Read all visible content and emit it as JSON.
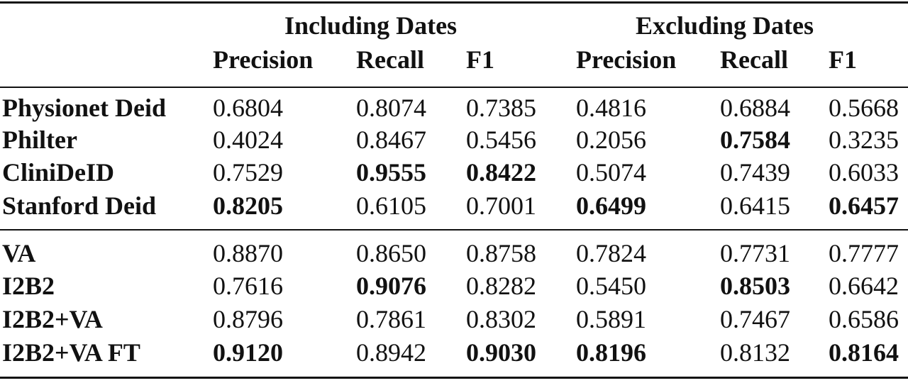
{
  "table": {
    "group_headers": [
      "Including Dates",
      "Excluding Dates"
    ],
    "column_headers": [
      "Precision",
      "Recall",
      "F1",
      "Precision",
      "Recall",
      "F1"
    ],
    "groups": [
      {
        "rows": [
          {
            "model": "Physionet Deid",
            "values": [
              "0.6804",
              "0.8074",
              "0.7385",
              "0.4816",
              "0.6884",
              "0.5668"
            ],
            "bold": [
              false,
              false,
              false,
              false,
              false,
              false
            ]
          },
          {
            "model": "Philter",
            "values": [
              "0.4024",
              "0.8467",
              "0.5456",
              "0.2056",
              "0.7584",
              "0.3235"
            ],
            "bold": [
              false,
              false,
              false,
              false,
              true,
              false
            ]
          },
          {
            "model": "CliniDeID",
            "values": [
              "0.7529",
              "0.9555",
              "0.8422",
              "0.5074",
              "0.7439",
              "0.6033"
            ],
            "bold": [
              false,
              true,
              true,
              false,
              false,
              false
            ]
          },
          {
            "model": "Stanford Deid",
            "values": [
              "0.8205",
              "0.6105",
              "0.7001",
              "0.6499",
              "0.6415",
              "0.6457"
            ],
            "bold": [
              true,
              false,
              false,
              true,
              false,
              true
            ]
          }
        ]
      },
      {
        "rows": [
          {
            "model": "VA",
            "values": [
              "0.8870",
              "0.8650",
              "0.8758",
              "0.7824",
              "0.7731",
              "0.7777"
            ],
            "bold": [
              false,
              false,
              false,
              false,
              false,
              false
            ]
          },
          {
            "model": "I2B2",
            "values": [
              "0.7616",
              "0.9076",
              "0.8282",
              "0.5450",
              "0.8503",
              "0.6642"
            ],
            "bold": [
              false,
              true,
              false,
              false,
              true,
              false
            ]
          },
          {
            "model": "I2B2+VA",
            "values": [
              "0.8796",
              "0.7861",
              "0.8302",
              "0.5891",
              "0.7467",
              "0.6586"
            ],
            "bold": [
              false,
              false,
              false,
              false,
              false,
              false
            ]
          },
          {
            "model": "I2B2+VA FT",
            "values": [
              "0.9120",
              "0.8942",
              "0.9030",
              "0.8196",
              "0.8132",
              "0.8164"
            ],
            "bold": [
              true,
              false,
              true,
              true,
              false,
              true
            ]
          }
        ]
      }
    ]
  }
}
